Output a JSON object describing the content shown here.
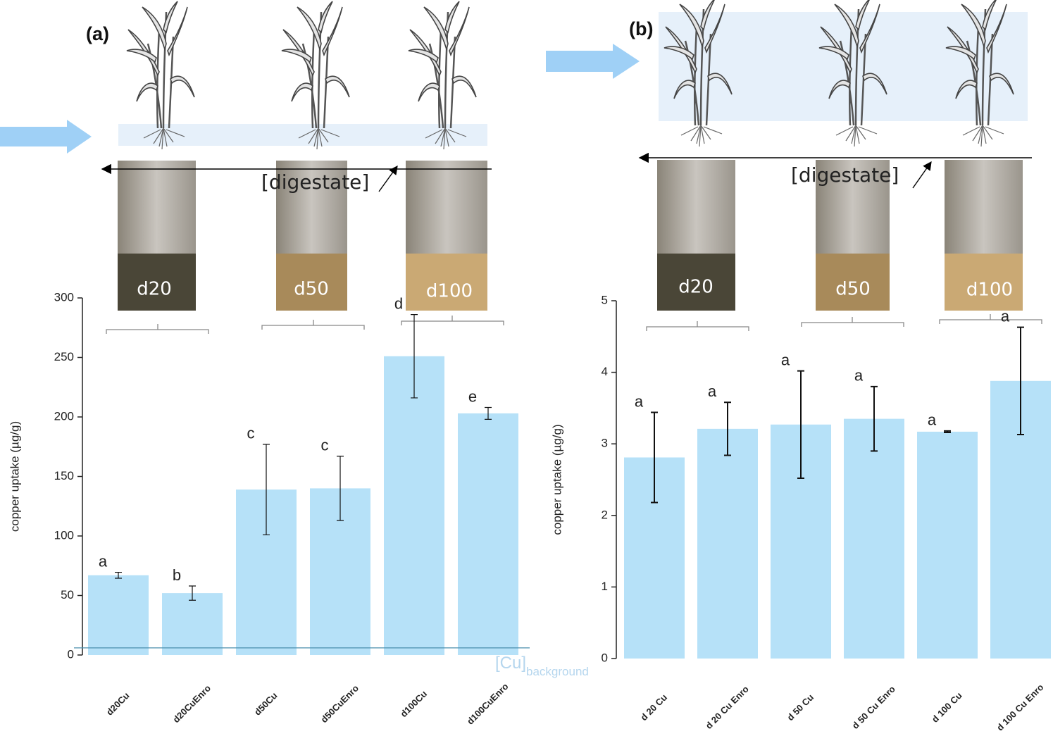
{
  "chart_data": [
    {
      "type": "bar",
      "panel_label": "(a)",
      "y_label": "copper uptake (µg/g)",
      "categories": [
        "d20Cu",
        "d20CuEnro",
        "d50Cu",
        "d50CuEnro",
        "d100Cu",
        "d100CuEnro"
      ],
      "values": [
        67,
        52,
        139,
        140,
        251,
        203
      ],
      "errors": [
        2.5,
        6,
        38,
        27,
        35,
        5
      ],
      "letters": [
        "a",
        "b",
        "c",
        "c",
        "d",
        "e"
      ],
      "color": "#b6e1f8",
      "ylim": [
        0,
        300
      ],
      "yticks": [
        0,
        50,
        100,
        150,
        200,
        250,
        300
      ],
      "reference_line": {
        "value": 6,
        "label": "[Cu]",
        "subscript": "background",
        "color": "#4b8fae"
      },
      "flask_labels": [
        "d20",
        "d50",
        "d100"
      ],
      "gradient_label": "[digestate]"
    },
    {
      "type": "bar",
      "panel_label": "(b)",
      "y_label": "copper uptake (µg/g)",
      "categories": [
        "d 20 Cu",
        "d 20 Cu Enro",
        "d 50 Cu",
        "d 50 Cu Enro",
        "d 100 Cu",
        "d 100 Cu Enro"
      ],
      "values": [
        2.81,
        3.21,
        3.27,
        3.35,
        3.17,
        3.88
      ],
      "errors": [
        0.63,
        0.37,
        0.75,
        0.45,
        0.01,
        0.75
      ],
      "letters": [
        "a",
        "a",
        "a",
        "a",
        "a",
        "a"
      ],
      "color": "#b6e1f8",
      "ylim": [
        0,
        5
      ],
      "yticks": [
        0,
        1,
        2,
        3,
        4,
        5
      ],
      "flask_labels": [
        "d20",
        "d50",
        "d100"
      ],
      "gradient_label": "[digestate]"
    }
  ]
}
